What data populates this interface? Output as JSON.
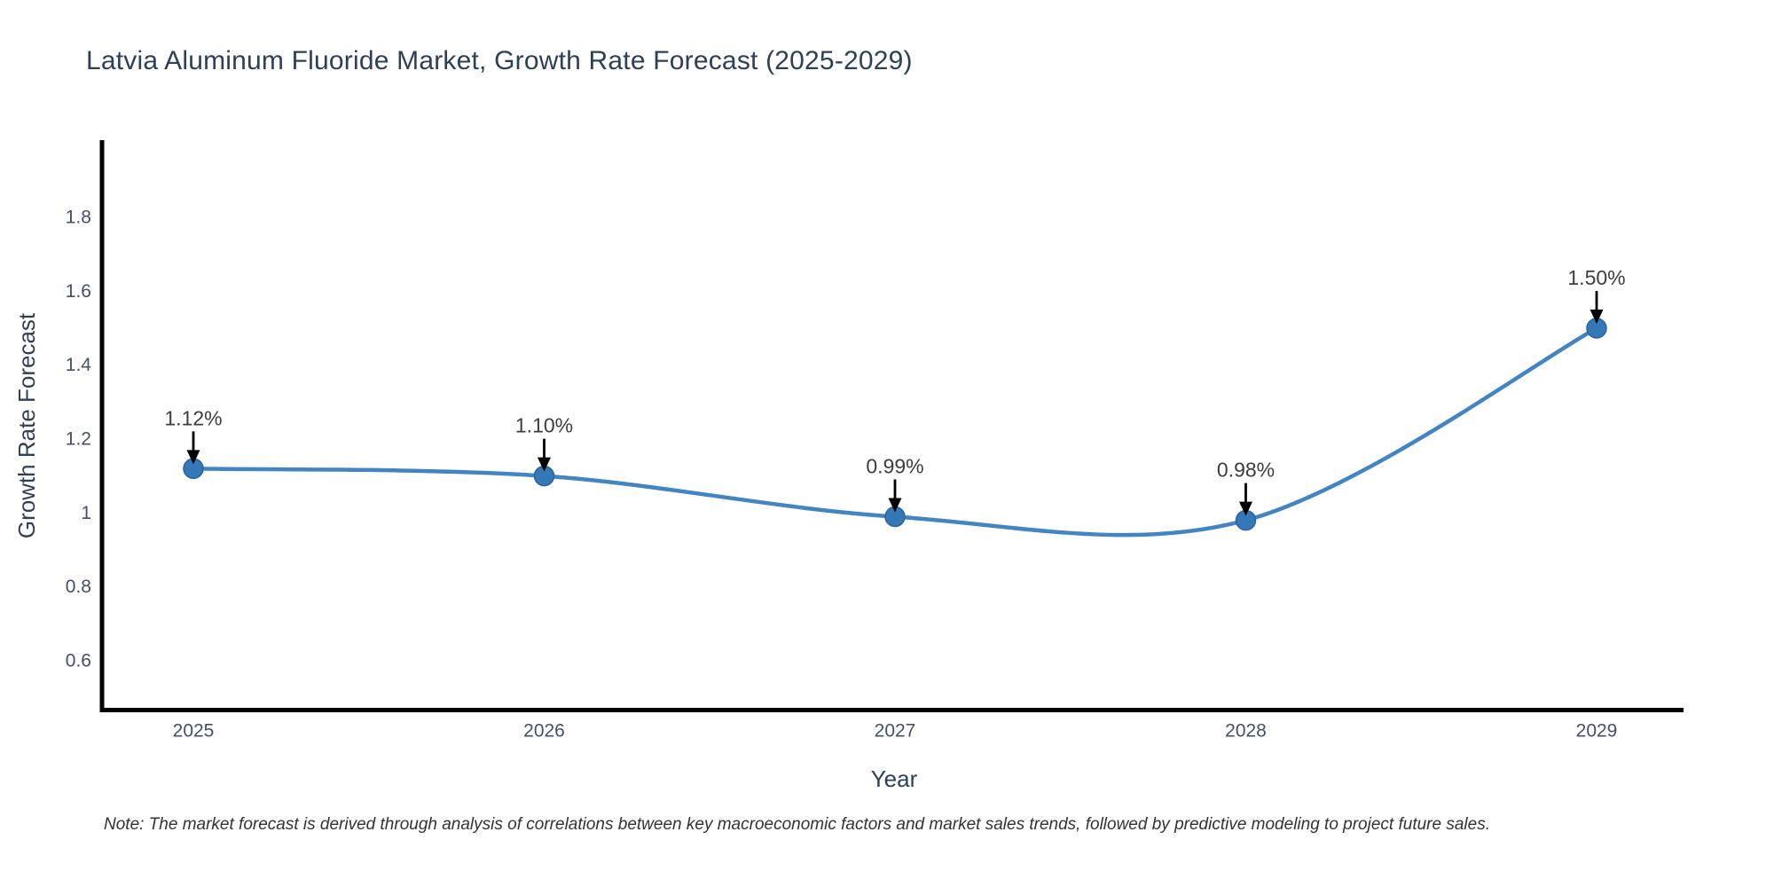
{
  "title": "Latvia Aluminum Fluoride Market, Growth Rate Forecast (2025-2029)",
  "note": "Note: The market forecast is derived through analysis of correlations between key macroeconomic factors and market sales trends, followed by predictive modeling to project future sales.",
  "chart_data": {
    "type": "line",
    "line_shape": "spline",
    "title": "Latvia Aluminum Fluoride Market, Growth Rate Forecast (2025-2029)",
    "xlabel": "Year",
    "ylabel": "Growth Rate Forecast",
    "x": [
      2025,
      2026,
      2027,
      2028,
      2029
    ],
    "y": [
      1.12,
      1.1,
      0.99,
      0.98,
      1.5
    ],
    "point_labels": [
      "1.12%",
      "1.10%",
      "0.99%",
      "0.98%",
      "1.50%"
    ],
    "xtick_labels": [
      "2025",
      "2026",
      "2027",
      "2028",
      "2029"
    ],
    "ytick_values": [
      0.6,
      0.8,
      1,
      1.2,
      1.4,
      1.6,
      1.8
    ],
    "ytick_labels": [
      "0.6",
      "0.8",
      "1",
      "1.2",
      "1.4",
      "1.6",
      "1.8"
    ],
    "xlim": [
      2024.74,
      2029.25
    ],
    "ylim": [
      0.47,
      2.0
    ],
    "grid": false,
    "legend": "none",
    "colors": {
      "line": "#4285c2",
      "marker_fill": "#3478b8",
      "marker_edge": "#2b649e",
      "annotation_arrow": "#000000",
      "axis_line": "#000000",
      "tick_text": "#44506b",
      "title_text": "#2e4057"
    }
  }
}
